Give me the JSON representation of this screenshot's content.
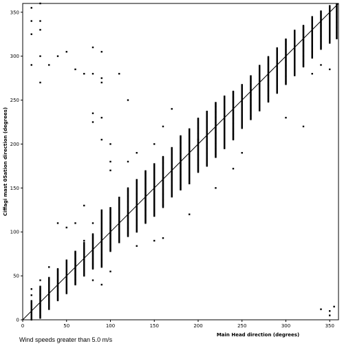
{
  "chart_data": {
    "type": "scatter",
    "title": "",
    "xlabel": "Main Head direction (degrees)",
    "ylabel": "Ciffagi mast 05ation direction (degrees)",
    "xlim": [
      0,
      360
    ],
    "ylim": [
      0,
      360
    ],
    "xticks": [
      0,
      50,
      100,
      150,
      200,
      250,
      300,
      350
    ],
    "yticks": [
      0,
      50,
      100,
      150,
      200,
      250,
      300,
      350
    ],
    "grid": false,
    "reference_line": {
      "from": [
        0,
        0
      ],
      "to": [
        360,
        360
      ]
    },
    "columns": [
      {
        "x": 10,
        "ymin": 0,
        "ymax": 22
      },
      {
        "x": 20,
        "ymin": 2,
        "ymax": 38
      },
      {
        "x": 30,
        "ymin": 12,
        "ymax": 48
      },
      {
        "x": 40,
        "ymin": 22,
        "ymax": 58
      },
      {
        "x": 50,
        "ymin": 30,
        "ymax": 68
      },
      {
        "x": 60,
        "ymin": 40,
        "ymax": 78
      },
      {
        "x": 70,
        "ymin": 50,
        "ymax": 88
      },
      {
        "x": 80,
        "ymin": 58,
        "ymax": 98
      },
      {
        "x": 90,
        "ymin": 60,
        "ymax": 125
      },
      {
        "x": 100,
        "ymin": 78,
        "ymax": 128
      },
      {
        "x": 110,
        "ymin": 88,
        "ymax": 140
      },
      {
        "x": 120,
        "ymin": 95,
        "ymax": 150
      },
      {
        "x": 130,
        "ymin": 100,
        "ymax": 160
      },
      {
        "x": 140,
        "ymin": 110,
        "ymax": 170
      },
      {
        "x": 150,
        "ymin": 118,
        "ymax": 178
      },
      {
        "x": 160,
        "ymin": 128,
        "ymax": 186
      },
      {
        "x": 170,
        "ymin": 140,
        "ymax": 196
      },
      {
        "x": 180,
        "ymin": 148,
        "ymax": 210
      },
      {
        "x": 190,
        "ymin": 155,
        "ymax": 218
      },
      {
        "x": 200,
        "ymin": 168,
        "ymax": 230
      },
      {
        "x": 210,
        "ymin": 175,
        "ymax": 238
      },
      {
        "x": 220,
        "ymin": 185,
        "ymax": 248
      },
      {
        "x": 230,
        "ymin": 195,
        "ymax": 255
      },
      {
        "x": 240,
        "ymin": 205,
        "ymax": 260
      },
      {
        "x": 250,
        "ymin": 218,
        "ymax": 268
      },
      {
        "x": 260,
        "ymin": 228,
        "ymax": 278
      },
      {
        "x": 270,
        "ymin": 238,
        "ymax": 290
      },
      {
        "x": 280,
        "ymin": 248,
        "ymax": 300
      },
      {
        "x": 290,
        "ymin": 258,
        "ymax": 310
      },
      {
        "x": 300,
        "ymin": 268,
        "ymax": 320
      },
      {
        "x": 310,
        "ymin": 278,
        "ymax": 330
      },
      {
        "x": 320,
        "ymin": 288,
        "ymax": 335
      },
      {
        "x": 330,
        "ymin": 298,
        "ymax": 345
      },
      {
        "x": 340,
        "ymin": 308,
        "ymax": 352
      },
      {
        "x": 350,
        "ymin": 315,
        "ymax": 358
      },
      {
        "x": 358,
        "ymin": 320,
        "ymax": 360
      }
    ],
    "outliers": [
      [
        10,
        355
      ],
      [
        10,
        340
      ],
      [
        10,
        325
      ],
      [
        10,
        290
      ],
      [
        20,
        360
      ],
      [
        20,
        340
      ],
      [
        20,
        330
      ],
      [
        20,
        300
      ],
      [
        20,
        270
      ],
      [
        30,
        290
      ],
      [
        40,
        300
      ],
      [
        50,
        305
      ],
      [
        60,
        285
      ],
      [
        70,
        280
      ],
      [
        80,
        310
      ],
      [
        80,
        280
      ],
      [
        90,
        305
      ],
      [
        90,
        275
      ],
      [
        90,
        270
      ],
      [
        110,
        280
      ],
      [
        120,
        250
      ],
      [
        80,
        235
      ],
      [
        80,
        225
      ],
      [
        90,
        230
      ],
      [
        90,
        205
      ],
      [
        100,
        200
      ],
      [
        100,
        180
      ],
      [
        70,
        130
      ],
      [
        60,
        110
      ],
      [
        40,
        110
      ],
      [
        50,
        105
      ],
      [
        70,
        90
      ],
      [
        80,
        110
      ],
      [
        100,
        170
      ],
      [
        120,
        180
      ],
      [
        130,
        190
      ],
      [
        150,
        200
      ],
      [
        160,
        220
      ],
      [
        170,
        240
      ],
      [
        200,
        205
      ],
      [
        210,
        210
      ],
      [
        160,
        93
      ],
      [
        190,
        120
      ],
      [
        240,
        172
      ],
      [
        250,
        190
      ],
      [
        300,
        230
      ],
      [
        320,
        220
      ],
      [
        330,
        280
      ],
      [
        340,
        290
      ],
      [
        350,
        285
      ],
      [
        10,
        35
      ],
      [
        20,
        45
      ],
      [
        30,
        60
      ],
      [
        350,
        10
      ],
      [
        340,
        12
      ],
      [
        355,
        15
      ],
      [
        350,
        5
      ],
      [
        10,
        28
      ],
      [
        100,
        55
      ],
      [
        90,
        40
      ],
      [
        80,
        45
      ],
      [
        130,
        84
      ],
      [
        150,
        90
      ],
      [
        220,
        150
      ]
    ]
  },
  "caption": "Wind speeds greater than 5.0 m/s"
}
